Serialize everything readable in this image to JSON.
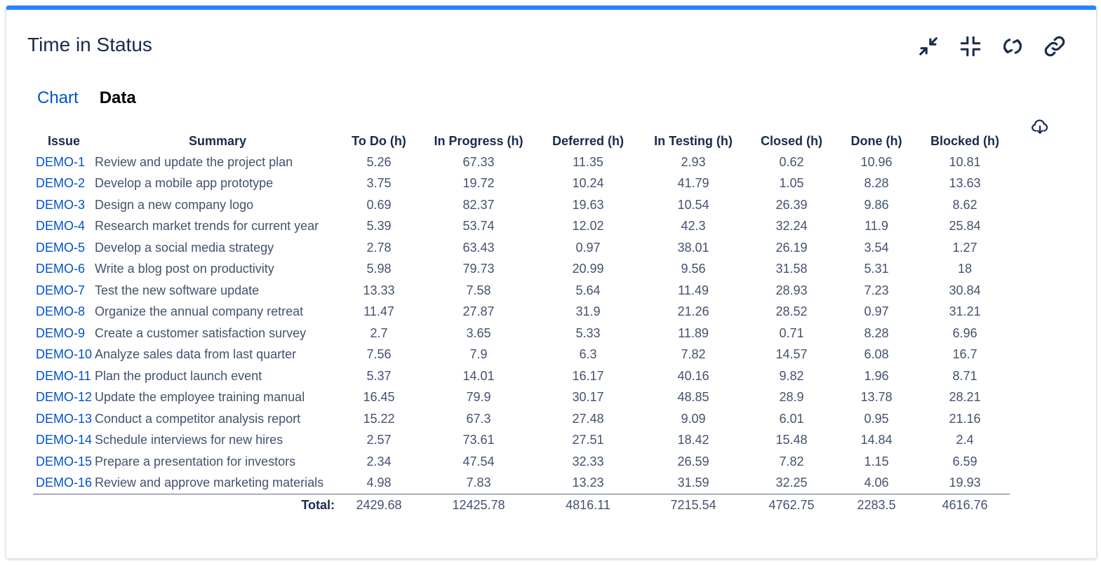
{
  "title": "Time in Status",
  "toolbar": {
    "icons": [
      "collapse-arrows-icon",
      "minimize-icon",
      "refresh-icon",
      "link-icon"
    ]
  },
  "tabs": [
    {
      "label": "Chart",
      "active": false
    },
    {
      "label": "Data",
      "active": true
    }
  ],
  "download_icon": "cloud-download-icon",
  "colors": {
    "accent": "#2684ff",
    "link": "#0052cc",
    "text": "#172b4d",
    "muted": "#42526e"
  },
  "table": {
    "headers": [
      "Issue",
      "Summary",
      "To Do (h)",
      "In Progress (h)",
      "Deferred (h)",
      "In Testing (h)",
      "Closed (h)",
      "Done (h)",
      "Blocked (h)"
    ],
    "rows": [
      [
        "DEMO-1",
        "Review and update the project plan",
        "5.26",
        "67.33",
        "11.35",
        "2.93",
        "0.62",
        "10.96",
        "10.81"
      ],
      [
        "DEMO-2",
        "Develop a mobile app prototype",
        "3.75",
        "19.72",
        "10.24",
        "41.79",
        "1.05",
        "8.28",
        "13.63"
      ],
      [
        "DEMO-3",
        "Design a new company logo",
        "0.69",
        "82.37",
        "19.63",
        "10.54",
        "26.39",
        "9.86",
        "8.62"
      ],
      [
        "DEMO-4",
        "Research market trends for current year",
        "5.39",
        "53.74",
        "12.02",
        "42.3",
        "32.24",
        "11.9",
        "25.84"
      ],
      [
        "DEMO-5",
        "Develop a social media strategy",
        "2.78",
        "63.43",
        "0.97",
        "38.01",
        "26.19",
        "3.54",
        "1.27"
      ],
      [
        "DEMO-6",
        "Write a blog post on productivity",
        "5.98",
        "79.73",
        "20.99",
        "9.56",
        "31.58",
        "5.31",
        "18"
      ],
      [
        "DEMO-7",
        "Test the new software update",
        "13.33",
        "7.58",
        "5.64",
        "11.49",
        "28.93",
        "7.23",
        "30.84"
      ],
      [
        "DEMO-8",
        "Organize the annual company retreat",
        "11.47",
        "27.87",
        "31.9",
        "21.26",
        "28.52",
        "0.97",
        "31.21"
      ],
      [
        "DEMO-9",
        "Create a customer satisfaction survey",
        "2.7",
        "3.65",
        "5.33",
        "11.89",
        "0.71",
        "8.28",
        "6.96"
      ],
      [
        "DEMO-10",
        "Analyze sales data from last quarter",
        "7.56",
        "7.9",
        "6.3",
        "7.82",
        "14.57",
        "6.08",
        "16.7"
      ],
      [
        "DEMO-11",
        "Plan the product launch event",
        "5.37",
        "14.01",
        "16.17",
        "40.16",
        "9.82",
        "1.96",
        "8.71"
      ],
      [
        "DEMO-12",
        "Update the employee training manual",
        "16.45",
        "79.9",
        "30.17",
        "48.85",
        "28.9",
        "13.78",
        "28.21"
      ],
      [
        "DEMO-13",
        "Conduct a competitor analysis report",
        "15.22",
        "67.3",
        "27.48",
        "9.09",
        "6.01",
        "0.95",
        "21.16"
      ],
      [
        "DEMO-14",
        "Schedule interviews for new hires",
        "2.57",
        "73.61",
        "27.51",
        "18.42",
        "15.48",
        "14.84",
        "2.4"
      ],
      [
        "DEMO-15",
        "Prepare a presentation for investors",
        "2.34",
        "47.54",
        "32.33",
        "26.59",
        "7.82",
        "1.15",
        "6.59"
      ],
      [
        "DEMO-16",
        "Review and approve marketing materials",
        "4.98",
        "7.83",
        "13.23",
        "31.59",
        "32.25",
        "4.06",
        "19.93"
      ]
    ],
    "total_label": "Total:",
    "totals": [
      "2429.68",
      "12425.78",
      "4816.11",
      "7215.54",
      "4762.75",
      "2283.5",
      "4616.76"
    ]
  }
}
